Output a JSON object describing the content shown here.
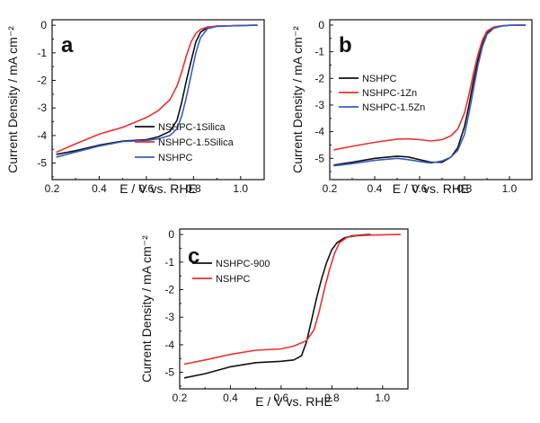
{
  "chart_data": [
    {
      "id": "a",
      "type": "line",
      "panel_label": "a",
      "xlabel": "E / V vs. RHE",
      "ylabel": "Current Density / mA cm⁻²",
      "xlim": [
        0.2,
        1.1
      ],
      "ylim": [
        -5.6,
        0.2
      ],
      "xticks": [
        0.2,
        0.4,
        0.6,
        0.8,
        1.0
      ],
      "yticks": [
        0,
        -1,
        -2,
        -3,
        -4,
        -5
      ],
      "grid": false,
      "legend_position": "bottom-right",
      "series": [
        {
          "name": "NSHPC-1Silica",
          "color": "#111111",
          "x": [
            0.22,
            0.3,
            0.4,
            0.5,
            0.6,
            0.65,
            0.7,
            0.73,
            0.75,
            0.77,
            0.79,
            0.81,
            0.83,
            0.86,
            0.9,
            0.95,
            1.0,
            1.07
          ],
          "y": [
            -4.68,
            -4.55,
            -4.35,
            -4.2,
            -4.15,
            -4.05,
            -3.85,
            -3.45,
            -2.8,
            -2.0,
            -1.3,
            -0.6,
            -0.25,
            -0.08,
            -0.03,
            -0.02,
            -0.01,
            0.0
          ]
        },
        {
          "name": "NSHPC-1.5Silica",
          "color": "#e8312f",
          "x": [
            0.22,
            0.3,
            0.4,
            0.5,
            0.6,
            0.65,
            0.7,
            0.73,
            0.75,
            0.77,
            0.79,
            0.81,
            0.83,
            0.86,
            0.9,
            0.95,
            1.0,
            1.07
          ],
          "y": [
            -4.6,
            -4.3,
            -3.95,
            -3.7,
            -3.35,
            -3.1,
            -2.7,
            -2.2,
            -1.7,
            -1.1,
            -0.6,
            -0.3,
            -0.15,
            -0.06,
            -0.03,
            -0.02,
            -0.01,
            0.0
          ]
        },
        {
          "name": "NSHPC",
          "color": "#3b5cc4",
          "x": [
            0.22,
            0.3,
            0.4,
            0.5,
            0.6,
            0.65,
            0.7,
            0.73,
            0.75,
            0.77,
            0.79,
            0.81,
            0.83,
            0.86,
            0.9,
            0.95,
            1.0,
            1.07
          ],
          "y": [
            -4.78,
            -4.6,
            -4.38,
            -4.22,
            -4.18,
            -4.12,
            -4.0,
            -3.75,
            -3.3,
            -2.6,
            -1.8,
            -1.0,
            -0.45,
            -0.12,
            -0.04,
            -0.02,
            -0.01,
            0.0
          ]
        }
      ]
    },
    {
      "id": "b",
      "type": "line",
      "panel_label": "b",
      "xlabel": "E / V vs. RHE",
      "ylabel": "Current Density / mA cm⁻²",
      "xlim": [
        0.2,
        1.1
      ],
      "ylim": [
        -5.8,
        0.2
      ],
      "xticks": [
        0.2,
        0.4,
        0.6,
        0.8,
        1.0
      ],
      "yticks": [
        0,
        -1,
        -2,
        -3,
        -4,
        -5
      ],
      "grid": false,
      "legend_position": "middle-left",
      "series": [
        {
          "name": "NSHPC",
          "color": "#111111",
          "x": [
            0.22,
            0.3,
            0.4,
            0.5,
            0.55,
            0.6,
            0.65,
            0.7,
            0.74,
            0.77,
            0.8,
            0.82,
            0.84,
            0.86,
            0.88,
            0.9,
            0.93,
            0.97,
            1.0,
            1.07
          ],
          "y": [
            -5.25,
            -5.15,
            -5.0,
            -4.92,
            -4.95,
            -5.05,
            -5.15,
            -5.15,
            -4.95,
            -4.6,
            -3.8,
            -3.0,
            -2.1,
            -1.3,
            -0.7,
            -0.3,
            -0.1,
            -0.03,
            -0.01,
            0.0
          ]
        },
        {
          "name": "NSHPC-1Zn",
          "color": "#e8312f",
          "x": [
            0.22,
            0.3,
            0.4,
            0.5,
            0.55,
            0.6,
            0.65,
            0.7,
            0.74,
            0.77,
            0.8,
            0.82,
            0.84,
            0.86,
            0.88,
            0.9,
            0.93,
            0.97,
            1.0,
            1.07
          ],
          "y": [
            -4.68,
            -4.55,
            -4.4,
            -4.28,
            -4.27,
            -4.3,
            -4.35,
            -4.3,
            -4.15,
            -3.9,
            -3.3,
            -2.6,
            -1.8,
            -1.1,
            -0.55,
            -0.22,
            -0.07,
            -0.02,
            -0.01,
            0.0
          ]
        },
        {
          "name": "NSHPC-1.5Zn",
          "color": "#3b5cc4",
          "x": [
            0.22,
            0.3,
            0.4,
            0.5,
            0.55,
            0.6,
            0.65,
            0.7,
            0.74,
            0.77,
            0.8,
            0.82,
            0.84,
            0.86,
            0.88,
            0.9,
            0.93,
            0.97,
            1.0,
            1.07
          ],
          "y": [
            -5.28,
            -5.2,
            -5.08,
            -5.0,
            -5.05,
            -5.12,
            -5.18,
            -5.1,
            -4.95,
            -4.7,
            -4.1,
            -3.3,
            -2.4,
            -1.5,
            -0.8,
            -0.35,
            -0.12,
            -0.03,
            -0.01,
            0.0
          ]
        }
      ]
    },
    {
      "id": "c",
      "type": "line",
      "panel_label": "c",
      "xlabel": "E / V vs. RHE",
      "ylabel": "Current Density / mA cm⁻²",
      "xlim": [
        0.2,
        1.1
      ],
      "ylim": [
        -5.6,
        0.2
      ],
      "xticks": [
        0.2,
        0.4,
        0.6,
        0.8,
        1.0
      ],
      "yticks": [
        0,
        -1,
        -2,
        -3,
        -4,
        -5
      ],
      "grid": false,
      "legend_position": "top-left",
      "series": [
        {
          "name": "NSHPC-900",
          "color": "#111111",
          "x": [
            0.22,
            0.3,
            0.4,
            0.5,
            0.6,
            0.65,
            0.68,
            0.7,
            0.72,
            0.74,
            0.76,
            0.78,
            0.8,
            0.82,
            0.85,
            0.88,
            0.9,
            0.95
          ],
          "y": [
            -5.2,
            -5.05,
            -4.8,
            -4.65,
            -4.6,
            -4.55,
            -4.4,
            -3.9,
            -3.1,
            -2.3,
            -1.6,
            -1.0,
            -0.55,
            -0.3,
            -0.12,
            -0.05,
            -0.03,
            0.0
          ]
        },
        {
          "name": "NSHPC",
          "color": "#e8312f",
          "x": [
            0.22,
            0.3,
            0.4,
            0.5,
            0.6,
            0.65,
            0.7,
            0.73,
            0.75,
            0.77,
            0.79,
            0.81,
            0.83,
            0.86,
            0.9,
            0.95,
            1.0,
            1.07
          ],
          "y": [
            -4.7,
            -4.55,
            -4.35,
            -4.2,
            -4.15,
            -4.05,
            -3.85,
            -3.45,
            -2.8,
            -2.0,
            -1.3,
            -0.7,
            -0.3,
            -0.1,
            -0.04,
            -0.02,
            -0.01,
            0.0
          ]
        }
      ]
    }
  ]
}
